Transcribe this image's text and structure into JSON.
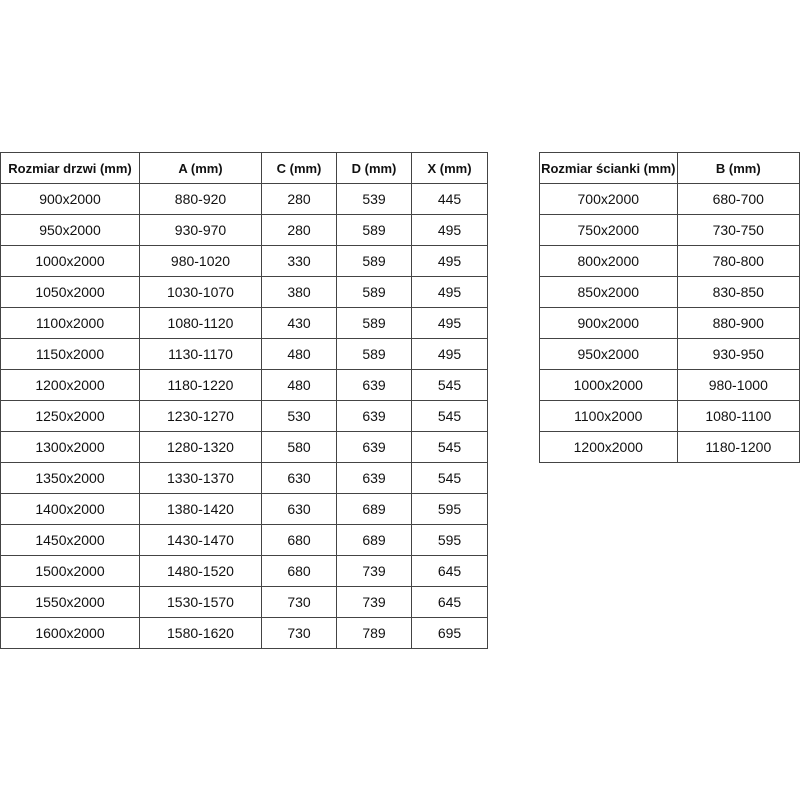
{
  "door_table": {
    "headers": [
      "Rozmiar drzwi (mm)",
      "A (mm)",
      "C (mm)",
      "D (mm)",
      "X (mm)"
    ],
    "rows": [
      [
        "900x2000",
        "880-920",
        "280",
        "539",
        "445"
      ],
      [
        "950x2000",
        "930-970",
        "280",
        "589",
        "495"
      ],
      [
        "1000x2000",
        "980-1020",
        "330",
        "589",
        "495"
      ],
      [
        "1050x2000",
        "1030-1070",
        "380",
        "589",
        "495"
      ],
      [
        "1100x2000",
        "1080-1120",
        "430",
        "589",
        "495"
      ],
      [
        "1150x2000",
        "1130-1170",
        "480",
        "589",
        "495"
      ],
      [
        "1200x2000",
        "1180-1220",
        "480",
        "639",
        "545"
      ],
      [
        "1250x2000",
        "1230-1270",
        "530",
        "639",
        "545"
      ],
      [
        "1300x2000",
        "1280-1320",
        "580",
        "639",
        "545"
      ],
      [
        "1350x2000",
        "1330-1370",
        "630",
        "639",
        "545"
      ],
      [
        "1400x2000",
        "1380-1420",
        "630",
        "689",
        "595"
      ],
      [
        "1450x2000",
        "1430-1470",
        "680",
        "689",
        "595"
      ],
      [
        "1500x2000",
        "1480-1520",
        "680",
        "739",
        "645"
      ],
      [
        "1550x2000",
        "1530-1570",
        "730",
        "739",
        "645"
      ],
      [
        "1600x2000",
        "1580-1620",
        "730",
        "789",
        "695"
      ]
    ]
  },
  "wall_table": {
    "headers": [
      "Rozmiar ścianki (mm)",
      "B (mm)"
    ],
    "rows": [
      [
        "700x2000",
        "680-700"
      ],
      [
        "750x2000",
        "730-750"
      ],
      [
        "800x2000",
        "780-800"
      ],
      [
        "850x2000",
        "830-850"
      ],
      [
        "900x2000",
        "880-900"
      ],
      [
        "950x2000",
        "930-950"
      ],
      [
        "1000x2000",
        "980-1000"
      ],
      [
        "1100x2000",
        "1080-1100"
      ],
      [
        "1200x2000",
        "1180-1200"
      ]
    ]
  }
}
